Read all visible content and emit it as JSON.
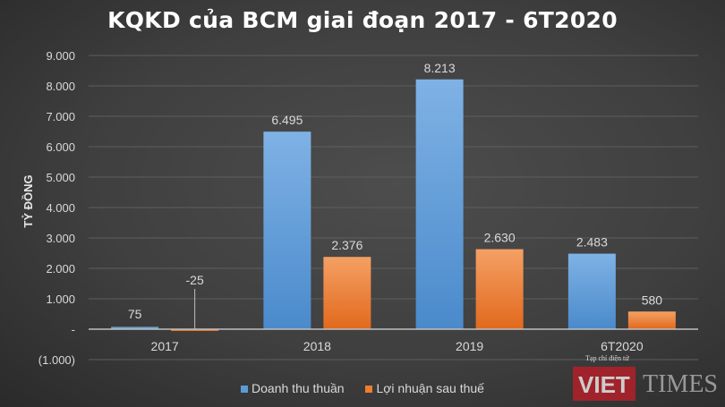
{
  "chart_data": {
    "type": "bar",
    "title": "KQKD của BCM giai đoạn 2017 - 6T2020",
    "ylabel": "TỶ ĐỒNG",
    "xlabel": "",
    "categories": [
      "2017",
      "2018",
      "2019",
      "6T2020"
    ],
    "series": [
      {
        "name": "Doanh thu thuần",
        "values": [
          75,
          6495,
          8213,
          2483
        ],
        "labels": [
          "75",
          "6.495",
          "8.213",
          "2.483"
        ],
        "color": "#5b9bd5"
      },
      {
        "name": "Lợi nhuận sau thuế",
        "values": [
          -25,
          2376,
          2630,
          580
        ],
        "labels": [
          "-25",
          "2.376",
          "2.630",
          "580"
        ],
        "color": "#ed7d31"
      }
    ],
    "ylim": [
      -1000,
      9000
    ],
    "yticks": [
      9000,
      8000,
      7000,
      6000,
      5000,
      4000,
      3000,
      2000,
      1000,
      0,
      -1000
    ],
    "ytick_labels": [
      "9.000",
      "8.000",
      "7.000",
      "6.000",
      "5.000",
      "4.000",
      "3.000",
      "2.000",
      "1.000",
      "-",
      "(1.000)"
    ],
    "grid": true,
    "legend": "bottom"
  },
  "watermark": {
    "top": "Tạp chí điện tử",
    "brand1": "VIET",
    "brand2": "TIMES"
  }
}
